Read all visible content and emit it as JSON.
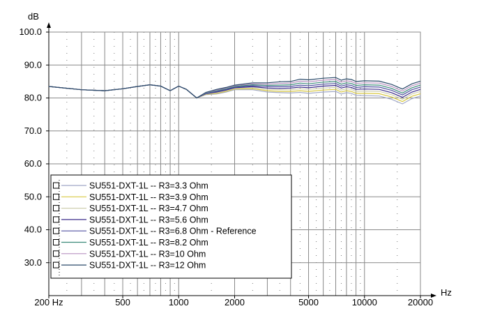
{
  "chart_data": {
    "type": "line",
    "title": "",
    "xlabel": "Hz",
    "ylabel": "dB",
    "x_scale": "log",
    "xlim": [
      200,
      20000
    ],
    "ylim": [
      20,
      100
    ],
    "x_ticks": [
      {
        "value": 200,
        "label": "200 Hz"
      },
      {
        "value": 500,
        "label": "500"
      },
      {
        "value": 1000,
        "label": "1000"
      },
      {
        "value": 2000,
        "label": "2000"
      },
      {
        "value": 5000,
        "label": "5000"
      },
      {
        "value": 10000,
        "label": "10000"
      },
      {
        "value": 20000,
        "label": "20000"
      }
    ],
    "y_ticks": [
      {
        "value": 100,
        "label": "100.0"
      },
      {
        "value": 90,
        "label": "90.0"
      },
      {
        "value": 80,
        "label": "80.0"
      },
      {
        "value": 70,
        "label": "70.0"
      },
      {
        "value": 60,
        "label": "60.0"
      },
      {
        "value": 50,
        "label": "50.0"
      },
      {
        "value": 40,
        "label": "40.0"
      },
      {
        "value": 30,
        "label": "30.0"
      }
    ],
    "grid": true,
    "legend_position": "bottom-left",
    "x": [
      200,
      300,
      400,
      500,
      600,
      700,
      800,
      900,
      1000,
      1100,
      1250,
      1400,
      1600,
      1800,
      2000,
      2500,
      3000,
      3500,
      4000,
      4500,
      5000,
      6000,
      7000,
      7500,
      8000,
      8500,
      9000,
      10000,
      12000,
      14000,
      16000,
      18000,
      20000
    ],
    "series": [
      {
        "name": "SU551-DXT-1L -- R3=3.3 Ohm",
        "color": "#a0a8c8",
        "values": [
          83.5,
          82.5,
          82.2,
          82.8,
          83.5,
          84.0,
          83.6,
          82.2,
          83.6,
          82.6,
          80.0,
          81.0,
          81.2,
          81.8,
          82.5,
          82.5,
          81.8,
          81.6,
          81.5,
          81.7,
          81.4,
          81.8,
          82.0,
          81.2,
          81.6,
          81.4,
          80.8,
          80.7,
          80.6,
          79.6,
          78.2,
          79.8,
          80.6
        ]
      },
      {
        "name": "SU551-DXT-1L -- R3=3.9 Ohm",
        "color": "#d8c840",
        "values": [
          83.5,
          82.5,
          82.2,
          82.8,
          83.5,
          84.0,
          83.6,
          82.2,
          83.6,
          82.6,
          80.0,
          81.1,
          81.4,
          82.0,
          82.7,
          82.8,
          82.2,
          82.0,
          82.0,
          82.2,
          82.0,
          82.4,
          82.6,
          81.8,
          82.2,
          82.0,
          81.4,
          81.4,
          81.3,
          80.3,
          78.9,
          80.5,
          81.3
        ]
      },
      {
        "name": "SU551-DXT-1L -- R3=4.7 Ohm",
        "color": "#d0d0b0",
        "values": [
          83.5,
          82.5,
          82.2,
          82.8,
          83.5,
          84.0,
          83.6,
          82.2,
          83.6,
          82.6,
          80.0,
          81.2,
          81.6,
          82.2,
          82.9,
          83.1,
          82.6,
          82.5,
          82.5,
          82.8,
          82.6,
          83.0,
          83.2,
          82.4,
          82.8,
          82.6,
          82.0,
          82.1,
          82.0,
          81.0,
          79.6,
          81.2,
          82.0
        ]
      },
      {
        "name": "SU551-DXT-1L -- R3=5.6 Ohm",
        "color": "#3a2a8a",
        "values": [
          83.5,
          82.5,
          82.2,
          82.8,
          83.5,
          84.0,
          83.6,
          82.2,
          83.6,
          82.6,
          80.0,
          81.3,
          81.8,
          82.4,
          83.1,
          83.4,
          83.0,
          82.9,
          83.0,
          83.3,
          83.1,
          83.6,
          83.8,
          83.0,
          83.4,
          83.2,
          82.6,
          82.7,
          82.6,
          81.6,
          80.2,
          81.8,
          82.6
        ]
      },
      {
        "name": "SU551-DXT-1L -- R3=6.8 Ohm - Reference",
        "color": "#5050a0",
        "values": [
          83.5,
          82.5,
          82.2,
          82.8,
          83.5,
          84.0,
          83.6,
          82.2,
          83.6,
          82.6,
          80.0,
          81.4,
          82.0,
          82.6,
          83.3,
          83.7,
          83.4,
          83.4,
          83.5,
          83.9,
          83.7,
          84.2,
          84.4,
          83.6,
          84.0,
          83.8,
          83.2,
          83.4,
          83.3,
          82.3,
          80.9,
          82.5,
          83.3
        ]
      },
      {
        "name": "SU551-DXT-1L -- R3=8.2 Ohm",
        "color": "#3a8a7a",
        "values": [
          83.5,
          82.5,
          82.2,
          82.8,
          83.5,
          84.0,
          83.6,
          82.2,
          83.6,
          82.6,
          80.0,
          81.5,
          82.2,
          82.8,
          83.5,
          84.0,
          83.8,
          83.9,
          84.0,
          84.5,
          84.3,
          84.8,
          85.0,
          84.2,
          84.6,
          84.4,
          83.8,
          84.0,
          83.9,
          82.9,
          81.5,
          83.1,
          83.9
        ]
      },
      {
        "name": "SU551-DXT-1L -- R3=10 Ohm",
        "color": "#b890c0",
        "values": [
          83.5,
          82.5,
          82.2,
          82.8,
          83.5,
          84.0,
          83.6,
          82.2,
          83.6,
          82.6,
          80.0,
          81.6,
          82.4,
          83.0,
          83.7,
          84.3,
          84.2,
          84.4,
          84.5,
          85.1,
          84.9,
          85.4,
          85.6,
          84.8,
          85.2,
          85.0,
          84.4,
          84.6,
          84.5,
          83.5,
          82.1,
          83.7,
          84.5
        ]
      },
      {
        "name": "SU551-DXT-1L -- R3=12 Ohm",
        "color": "#2a4a6a",
        "values": [
          83.5,
          82.5,
          82.2,
          82.8,
          83.5,
          84.0,
          83.6,
          82.2,
          83.6,
          82.6,
          80.0,
          81.7,
          82.6,
          83.2,
          83.9,
          84.6,
          84.6,
          84.9,
          85.0,
          85.7,
          85.5,
          86.0,
          86.2,
          85.4,
          85.8,
          85.6,
          85.0,
          85.2,
          85.1,
          84.1,
          82.7,
          84.3,
          85.1
        ]
      }
    ]
  }
}
